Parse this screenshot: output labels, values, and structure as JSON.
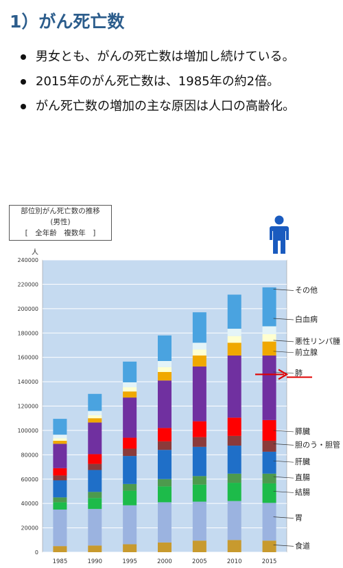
{
  "heading": "1）がん死亡数",
  "bullets": [
    "男女とも、がんの死亡数は増加し続けている。",
    "2015年のがん死亡数は、1985年の約2倍。",
    "がん死亡数の増加の主な原因は人口の高齢化。"
  ],
  "colors": {
    "heading": "#2c5d8c",
    "plot_bg": "#c5daf0",
    "person": "#1a5bbf",
    "arrow": "#e00000"
  },
  "chart_data": {
    "type": "bar",
    "stacked": true,
    "title_lines": [
      "部位別がん死亡数の推移",
      "(男性)",
      "[　全年齢　複数年　]"
    ],
    "unit_label": "人",
    "categories": [
      "1985",
      "1990",
      "1995",
      "2000",
      "2005",
      "2010",
      "2015"
    ],
    "ylim": [
      0,
      240000
    ],
    "yticks": [
      0,
      20000,
      40000,
      60000,
      80000,
      100000,
      120000,
      140000,
      160000,
      180000,
      200000,
      220000,
      240000
    ],
    "grid": true,
    "series": [
      {
        "name": "食道",
        "color": "#c89a2e",
        "values": [
          5000,
          5500,
          6500,
          8000,
          9500,
          10000,
          9500
        ]
      },
      {
        "name": "胃",
        "color": "#9bb3e0",
        "values": [
          30000,
          30000,
          32000,
          33000,
          32000,
          32000,
          31000
        ]
      },
      {
        "name": "結腸",
        "color": "#1dbb4a",
        "values": [
          6000,
          9000,
          12000,
          13000,
          14000,
          15000,
          16000
        ]
      },
      {
        "name": "直腸",
        "color": "#4d9a4d",
        "values": [
          4000,
          5000,
          5500,
          6000,
          7000,
          7500,
          8000
        ]
      },
      {
        "name": "肝臓",
        "color": "#1f6fc8",
        "values": [
          14000,
          18000,
          23000,
          24000,
          24000,
          23000,
          18000
        ]
      },
      {
        "name": "胆のう・胆管",
        "color": "#8b3a3a",
        "values": [
          4000,
          5000,
          6000,
          7000,
          8000,
          8000,
          9000
        ]
      },
      {
        "name": "膵臓",
        "color": "#ff0000",
        "values": [
          6000,
          8000,
          9000,
          11000,
          13000,
          15000,
          17000
        ]
      },
      {
        "name": "肺",
        "color": "#7030a0",
        "values": [
          20000,
          26000,
          33000,
          39000,
          45000,
          51000,
          53000
        ]
      },
      {
        "name": "前立腺",
        "color": "#f0a800",
        "values": [
          2500,
          3500,
          5000,
          7000,
          9000,
          10500,
          11500
        ]
      },
      {
        "name": "悪性リンパ腫",
        "color": "#ffffd0",
        "values": [
          2000,
          2500,
          3500,
          4000,
          5000,
          5500,
          6000
        ]
      },
      {
        "name": "白血病",
        "color": "#e4f4f8",
        "values": [
          3000,
          3500,
          4000,
          5000,
          5500,
          6000,
          6500
        ]
      },
      {
        "name": "その他",
        "color": "#4aa3e0",
        "values": [
          13000,
          14000,
          17000,
          21000,
          25000,
          28000,
          32000
        ]
      }
    ],
    "right_labels": [
      {
        "text": "その他",
        "y": 216000
      },
      {
        "text": "白血病",
        "y": 192000
      },
      {
        "text": "悪性リンパ腫",
        "y": 174000
      },
      {
        "text": "前立腺",
        "y": 165000
      },
      {
        "text": "肺",
        "y": 148000
      },
      {
        "text": "膵臓",
        "y": 100000
      },
      {
        "text": "胆のう・胆管",
        "y": 89000
      },
      {
        "text": "肝臓",
        "y": 75000
      },
      {
        "text": "直腸",
        "y": 62000
      },
      {
        "text": "結腸",
        "y": 50000
      },
      {
        "text": "胃",
        "y": 29000
      },
      {
        "text": "食道",
        "y": 6000
      }
    ]
  }
}
